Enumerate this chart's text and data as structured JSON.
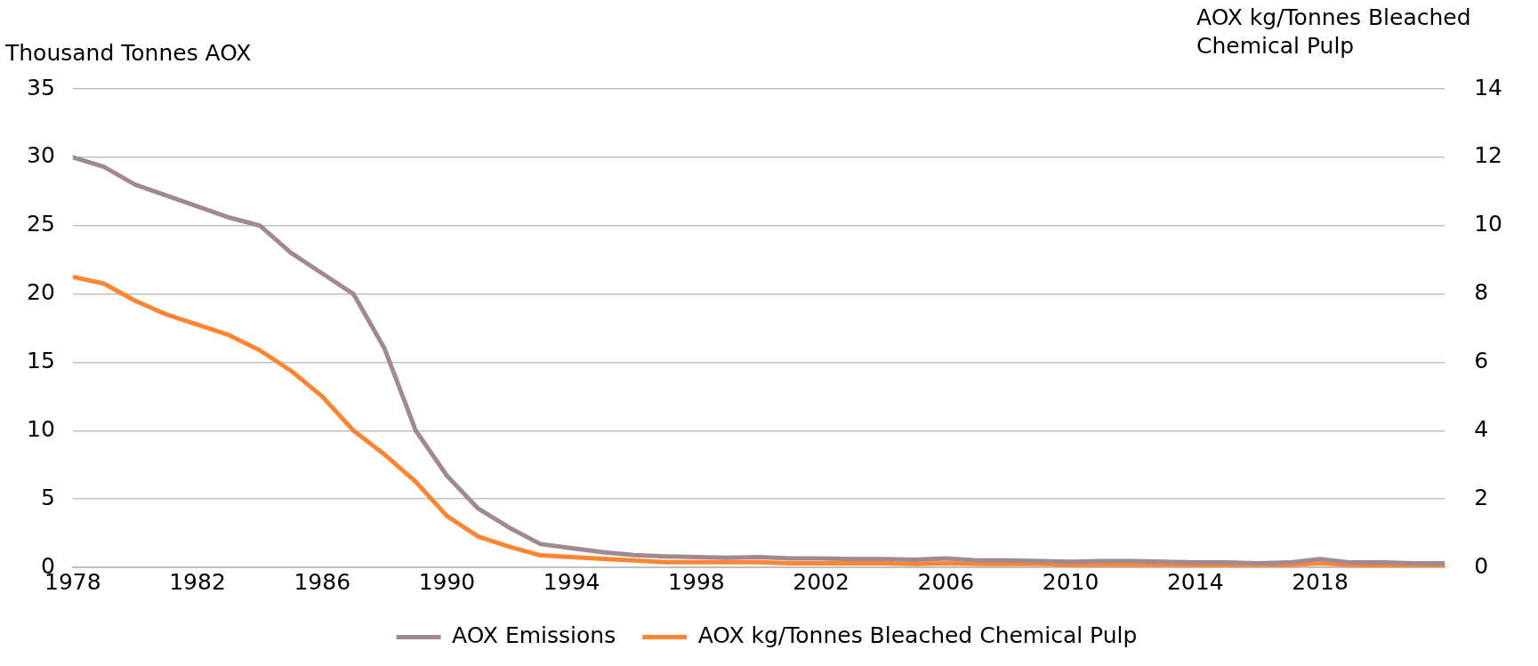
{
  "chart_data": {
    "type": "line",
    "ylabel": "Thousand Tonnes AOX",
    "y2label": "AOX kg/Tonnes Bleached Chemical Pulp",
    "x": [
      1978,
      1979,
      1980,
      1981,
      1982,
      1983,
      1984,
      1985,
      1986,
      1987,
      1988,
      1989,
      1990,
      1991,
      1992,
      1993,
      1994,
      1995,
      1996,
      1997,
      1998,
      1999,
      2000,
      2001,
      2002,
      2003,
      2004,
      2005,
      2006,
      2007,
      2008,
      2009,
      2010,
      2011,
      2012,
      2013,
      2014,
      2015,
      2016,
      2017,
      2018,
      2019,
      2020,
      2021,
      2022
    ],
    "xlim": [
      1978,
      2022
    ],
    "xticks": [
      1978,
      1982,
      1986,
      1990,
      1994,
      1998,
      2002,
      2006,
      2010,
      2014,
      2018
    ],
    "ylim": [
      0,
      35
    ],
    "yticks": [
      0,
      5,
      10,
      15,
      20,
      25,
      30,
      35
    ],
    "y2lim": [
      0,
      14
    ],
    "y2ticks": [
      0,
      2,
      4,
      6,
      8,
      10,
      12,
      14
    ],
    "series": [
      {
        "name": "AOX Emissions",
        "color": "#a08a8f",
        "values": [
          30,
          29.3,
          28,
          27.2,
          26.4,
          25.6,
          25,
          23,
          21.5,
          20,
          16,
          10,
          6.7,
          4.3,
          2.9,
          1.7,
          1.4,
          1.1,
          0.9,
          0.8,
          0.75,
          0.7,
          0.75,
          0.65,
          0.65,
          0.6,
          0.6,
          0.55,
          0.65,
          0.5,
          0.5,
          0.45,
          0.4,
          0.45,
          0.45,
          0.4,
          0.35,
          0.35,
          0.3,
          0.35,
          0.6,
          0.35,
          0.35,
          0.3,
          0.3
        ]
      },
      {
        "name": "AOX kg/Tonnes Bleached Chemical Pulp",
        "color": "#ff8533",
        "axis": "y2",
        "values": [
          8.5,
          8.3,
          7.8,
          7.4,
          7.1,
          6.8,
          6.35,
          5.75,
          5,
          4,
          3.3,
          2.5,
          1.5,
          0.9,
          0.6,
          0.35,
          0.3,
          0.25,
          0.2,
          0.15,
          0.15,
          0.15,
          0.15,
          0.12,
          0.12,
          0.12,
          0.12,
          0.1,
          0.12,
          0.1,
          0.1,
          0.1,
          0.08,
          0.08,
          0.08,
          0.08,
          0.07,
          0.07,
          0.07,
          0.07,
          0.12,
          0.07,
          0.06,
          0.06,
          0.05
        ]
      }
    ],
    "legend": "bottom",
    "grid": "y",
    "marker": "none",
    "line_style": "solid"
  }
}
